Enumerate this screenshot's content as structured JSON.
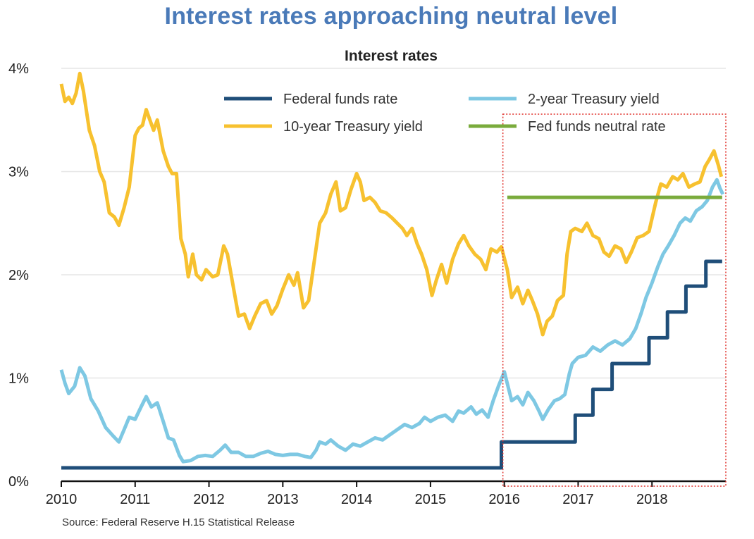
{
  "headline": "Interest rates approaching neutral level",
  "colors": {
    "headline": "#4a7ab8",
    "fed_funds": "#1f4e79",
    "two_year": "#7ec8e3",
    "ten_year": "#f7c12f",
    "neutral": "#7aab3c",
    "highlight_box": "#e0302a",
    "grid": "#e6e6e6",
    "axis": "#111111"
  },
  "chart_data": {
    "type": "line",
    "title": "Interest rates",
    "xlabel": "",
    "ylabel": "",
    "xlim": [
      2010,
      2019
    ],
    "ylim": [
      0,
      4
    ],
    "xticks": [
      2010,
      2011,
      2012,
      2013,
      2014,
      2015,
      2016,
      2017,
      2018
    ],
    "xtick_labels": [
      "2010",
      "2011",
      "2012",
      "2013",
      "2014",
      "2015",
      "2016",
      "2017",
      "2018"
    ],
    "yticks": [
      0,
      1,
      2,
      3,
      4
    ],
    "ytick_labels": [
      "0%",
      "1%",
      "2%",
      "3%",
      "4%"
    ],
    "legend_position": "top-right",
    "source": "Source: Federal Reserve H.15 Statistical Release",
    "highlight_region": {
      "x_start": 2016.0,
      "x_end": 2019.0,
      "style": "dotted red box"
    },
    "series": [
      {
        "name": "Federal funds rate",
        "color_key": "fed_funds",
        "step": true,
        "points": [
          [
            2010.0,
            0.13
          ],
          [
            2015.96,
            0.13
          ],
          [
            2015.96,
            0.38
          ],
          [
            2016.96,
            0.38
          ],
          [
            2016.96,
            0.64
          ],
          [
            2017.2,
            0.64
          ],
          [
            2017.2,
            0.89
          ],
          [
            2017.46,
            0.89
          ],
          [
            2017.46,
            1.14
          ],
          [
            2017.96,
            1.14
          ],
          [
            2017.96,
            1.39
          ],
          [
            2018.21,
            1.39
          ],
          [
            2018.21,
            1.64
          ],
          [
            2018.46,
            1.64
          ],
          [
            2018.46,
            1.89
          ],
          [
            2018.73,
            1.89
          ],
          [
            2018.73,
            2.13
          ],
          [
            2018.95,
            2.13
          ]
        ]
      },
      {
        "name": "2-year Treasury yield",
        "color_key": "two_year",
        "points": [
          [
            2010.0,
            1.08
          ],
          [
            2010.05,
            0.95
          ],
          [
            2010.1,
            0.85
          ],
          [
            2010.18,
            0.92
          ],
          [
            2010.25,
            1.1
          ],
          [
            2010.32,
            1.02
          ],
          [
            2010.4,
            0.8
          ],
          [
            2010.5,
            0.68
          ],
          [
            2010.6,
            0.52
          ],
          [
            2010.7,
            0.44
          ],
          [
            2010.78,
            0.38
          ],
          [
            2010.85,
            0.5
          ],
          [
            2010.92,
            0.62
          ],
          [
            2011.0,
            0.6
          ],
          [
            2011.08,
            0.72
          ],
          [
            2011.15,
            0.82
          ],
          [
            2011.22,
            0.72
          ],
          [
            2011.3,
            0.76
          ],
          [
            2011.38,
            0.58
          ],
          [
            2011.45,
            0.42
          ],
          [
            2011.52,
            0.4
          ],
          [
            2011.6,
            0.25
          ],
          [
            2011.65,
            0.19
          ],
          [
            2011.75,
            0.2
          ],
          [
            2011.85,
            0.24
          ],
          [
            2011.95,
            0.25
          ],
          [
            2012.05,
            0.24
          ],
          [
            2012.15,
            0.3
          ],
          [
            2012.22,
            0.35
          ],
          [
            2012.3,
            0.28
          ],
          [
            2012.4,
            0.28
          ],
          [
            2012.5,
            0.24
          ],
          [
            2012.6,
            0.24
          ],
          [
            2012.7,
            0.27
          ],
          [
            2012.8,
            0.29
          ],
          [
            2012.9,
            0.26
          ],
          [
            2013.0,
            0.25
          ],
          [
            2013.1,
            0.26
          ],
          [
            2013.2,
            0.26
          ],
          [
            2013.3,
            0.24
          ],
          [
            2013.38,
            0.23
          ],
          [
            2013.45,
            0.3
          ],
          [
            2013.5,
            0.38
          ],
          [
            2013.58,
            0.36
          ],
          [
            2013.65,
            0.4
          ],
          [
            2013.75,
            0.34
          ],
          [
            2013.85,
            0.3
          ],
          [
            2013.95,
            0.36
          ],
          [
            2014.05,
            0.34
          ],
          [
            2014.15,
            0.38
          ],
          [
            2014.25,
            0.42
          ],
          [
            2014.35,
            0.4
          ],
          [
            2014.45,
            0.45
          ],
          [
            2014.55,
            0.5
          ],
          [
            2014.65,
            0.55
          ],
          [
            2014.75,
            0.52
          ],
          [
            2014.85,
            0.56
          ],
          [
            2014.92,
            0.62
          ],
          [
            2015.0,
            0.58
          ],
          [
            2015.1,
            0.62
          ],
          [
            2015.2,
            0.64
          ],
          [
            2015.3,
            0.58
          ],
          [
            2015.38,
            0.68
          ],
          [
            2015.45,
            0.66
          ],
          [
            2015.55,
            0.72
          ],
          [
            2015.62,
            0.65
          ],
          [
            2015.7,
            0.69
          ],
          [
            2015.78,
            0.62
          ],
          [
            2015.85,
            0.78
          ],
          [
            2015.92,
            0.92
          ],
          [
            2016.0,
            1.06
          ],
          [
            2016.05,
            0.92
          ],
          [
            2016.1,
            0.78
          ],
          [
            2016.18,
            0.82
          ],
          [
            2016.25,
            0.74
          ],
          [
            2016.32,
            0.86
          ],
          [
            2016.4,
            0.78
          ],
          [
            2016.47,
            0.68
          ],
          [
            2016.52,
            0.6
          ],
          [
            2016.6,
            0.7
          ],
          [
            2016.68,
            0.78
          ],
          [
            2016.75,
            0.8
          ],
          [
            2016.82,
            0.84
          ],
          [
            2016.88,
            1.04
          ],
          [
            2016.92,
            1.14
          ],
          [
            2017.0,
            1.2
          ],
          [
            2017.1,
            1.22
          ],
          [
            2017.2,
            1.3
          ],
          [
            2017.3,
            1.26
          ],
          [
            2017.4,
            1.32
          ],
          [
            2017.5,
            1.36
          ],
          [
            2017.6,
            1.32
          ],
          [
            2017.7,
            1.38
          ],
          [
            2017.78,
            1.48
          ],
          [
            2017.85,
            1.62
          ],
          [
            2017.92,
            1.78
          ],
          [
            2018.0,
            1.92
          ],
          [
            2018.08,
            2.08
          ],
          [
            2018.15,
            2.2
          ],
          [
            2018.22,
            2.28
          ],
          [
            2018.3,
            2.38
          ],
          [
            2018.38,
            2.5
          ],
          [
            2018.45,
            2.55
          ],
          [
            2018.52,
            2.52
          ],
          [
            2018.6,
            2.62
          ],
          [
            2018.68,
            2.66
          ],
          [
            2018.75,
            2.72
          ],
          [
            2018.82,
            2.85
          ],
          [
            2018.88,
            2.92
          ],
          [
            2018.92,
            2.84
          ],
          [
            2018.96,
            2.78
          ]
        ]
      },
      {
        "name": "10-year Treasury yield",
        "color_key": "ten_year",
        "points": [
          [
            2010.0,
            3.85
          ],
          [
            2010.05,
            3.68
          ],
          [
            2010.1,
            3.72
          ],
          [
            2010.15,
            3.66
          ],
          [
            2010.2,
            3.76
          ],
          [
            2010.25,
            3.95
          ],
          [
            2010.3,
            3.78
          ],
          [
            2010.38,
            3.4
          ],
          [
            2010.45,
            3.25
          ],
          [
            2010.52,
            3.0
          ],
          [
            2010.58,
            2.9
          ],
          [
            2010.65,
            2.6
          ],
          [
            2010.72,
            2.56
          ],
          [
            2010.78,
            2.48
          ],
          [
            2010.85,
            2.65
          ],
          [
            2010.92,
            2.85
          ],
          [
            2011.0,
            3.35
          ],
          [
            2011.05,
            3.42
          ],
          [
            2011.1,
            3.45
          ],
          [
            2011.15,
            3.6
          ],
          [
            2011.2,
            3.5
          ],
          [
            2011.25,
            3.4
          ],
          [
            2011.3,
            3.5
          ],
          [
            2011.38,
            3.2
          ],
          [
            2011.45,
            3.05
          ],
          [
            2011.5,
            2.98
          ],
          [
            2011.56,
            2.98
          ],
          [
            2011.62,
            2.35
          ],
          [
            2011.68,
            2.2
          ],
          [
            2011.72,
            1.98
          ],
          [
            2011.78,
            2.2
          ],
          [
            2011.83,
            2.0
          ],
          [
            2011.9,
            1.95
          ],
          [
            2011.96,
            2.05
          ],
          [
            2012.05,
            1.98
          ],
          [
            2012.12,
            2.0
          ],
          [
            2012.2,
            2.28
          ],
          [
            2012.25,
            2.2
          ],
          [
            2012.32,
            1.92
          ],
          [
            2012.4,
            1.6
          ],
          [
            2012.48,
            1.62
          ],
          [
            2012.55,
            1.48
          ],
          [
            2012.62,
            1.6
          ],
          [
            2012.7,
            1.72
          ],
          [
            2012.78,
            1.75
          ],
          [
            2012.85,
            1.62
          ],
          [
            2012.92,
            1.7
          ],
          [
            2013.0,
            1.86
          ],
          [
            2013.08,
            2.0
          ],
          [
            2013.15,
            1.9
          ],
          [
            2013.2,
            2.02
          ],
          [
            2013.28,
            1.68
          ],
          [
            2013.35,
            1.75
          ],
          [
            2013.42,
            2.1
          ],
          [
            2013.5,
            2.5
          ],
          [
            2013.58,
            2.6
          ],
          [
            2013.65,
            2.78
          ],
          [
            2013.72,
            2.9
          ],
          [
            2013.78,
            2.62
          ],
          [
            2013.85,
            2.65
          ],
          [
            2013.92,
            2.82
          ],
          [
            2014.0,
            2.98
          ],
          [
            2014.05,
            2.9
          ],
          [
            2014.1,
            2.72
          ],
          [
            2014.18,
            2.75
          ],
          [
            2014.25,
            2.7
          ],
          [
            2014.32,
            2.62
          ],
          [
            2014.4,
            2.6
          ],
          [
            2014.48,
            2.55
          ],
          [
            2014.55,
            2.5
          ],
          [
            2014.62,
            2.45
          ],
          [
            2014.68,
            2.38
          ],
          [
            2014.75,
            2.45
          ],
          [
            2014.82,
            2.3
          ],
          [
            2014.88,
            2.2
          ],
          [
            2014.95,
            2.05
          ],
          [
            2015.02,
            1.8
          ],
          [
            2015.08,
            1.95
          ],
          [
            2015.15,
            2.1
          ],
          [
            2015.22,
            1.92
          ],
          [
            2015.3,
            2.15
          ],
          [
            2015.38,
            2.3
          ],
          [
            2015.45,
            2.38
          ],
          [
            2015.52,
            2.28
          ],
          [
            2015.6,
            2.2
          ],
          [
            2015.68,
            2.15
          ],
          [
            2015.75,
            2.05
          ],
          [
            2015.82,
            2.25
          ],
          [
            2015.9,
            2.22
          ],
          [
            2015.96,
            2.27
          ],
          [
            2016.04,
            2.05
          ],
          [
            2016.1,
            1.78
          ],
          [
            2016.18,
            1.88
          ],
          [
            2016.25,
            1.72
          ],
          [
            2016.32,
            1.85
          ],
          [
            2016.38,
            1.75
          ],
          [
            2016.45,
            1.62
          ],
          [
            2016.52,
            1.42
          ],
          [
            2016.58,
            1.55
          ],
          [
            2016.65,
            1.6
          ],
          [
            2016.72,
            1.75
          ],
          [
            2016.8,
            1.8
          ],
          [
            2016.85,
            2.2
          ],
          [
            2016.9,
            2.42
          ],
          [
            2016.96,
            2.45
          ],
          [
            2017.05,
            2.42
          ],
          [
            2017.12,
            2.5
          ],
          [
            2017.2,
            2.38
          ],
          [
            2017.28,
            2.35
          ],
          [
            2017.35,
            2.22
          ],
          [
            2017.42,
            2.18
          ],
          [
            2017.5,
            2.28
          ],
          [
            2017.58,
            2.25
          ],
          [
            2017.65,
            2.12
          ],
          [
            2017.72,
            2.22
          ],
          [
            2017.8,
            2.36
          ],
          [
            2017.88,
            2.38
          ],
          [
            2017.96,
            2.42
          ],
          [
            2018.05,
            2.7
          ],
          [
            2018.12,
            2.88
          ],
          [
            2018.2,
            2.85
          ],
          [
            2018.28,
            2.95
          ],
          [
            2018.35,
            2.92
          ],
          [
            2018.42,
            2.98
          ],
          [
            2018.5,
            2.85
          ],
          [
            2018.58,
            2.88
          ],
          [
            2018.65,
            2.9
          ],
          [
            2018.72,
            3.05
          ],
          [
            2018.78,
            3.12
          ],
          [
            2018.84,
            3.2
          ],
          [
            2018.9,
            3.06
          ],
          [
            2018.94,
            2.95
          ]
        ]
      },
      {
        "name": "Fed funds neutral rate",
        "color_key": "neutral",
        "points": [
          [
            2016.04,
            2.75
          ],
          [
            2018.95,
            2.75
          ]
        ]
      }
    ]
  }
}
